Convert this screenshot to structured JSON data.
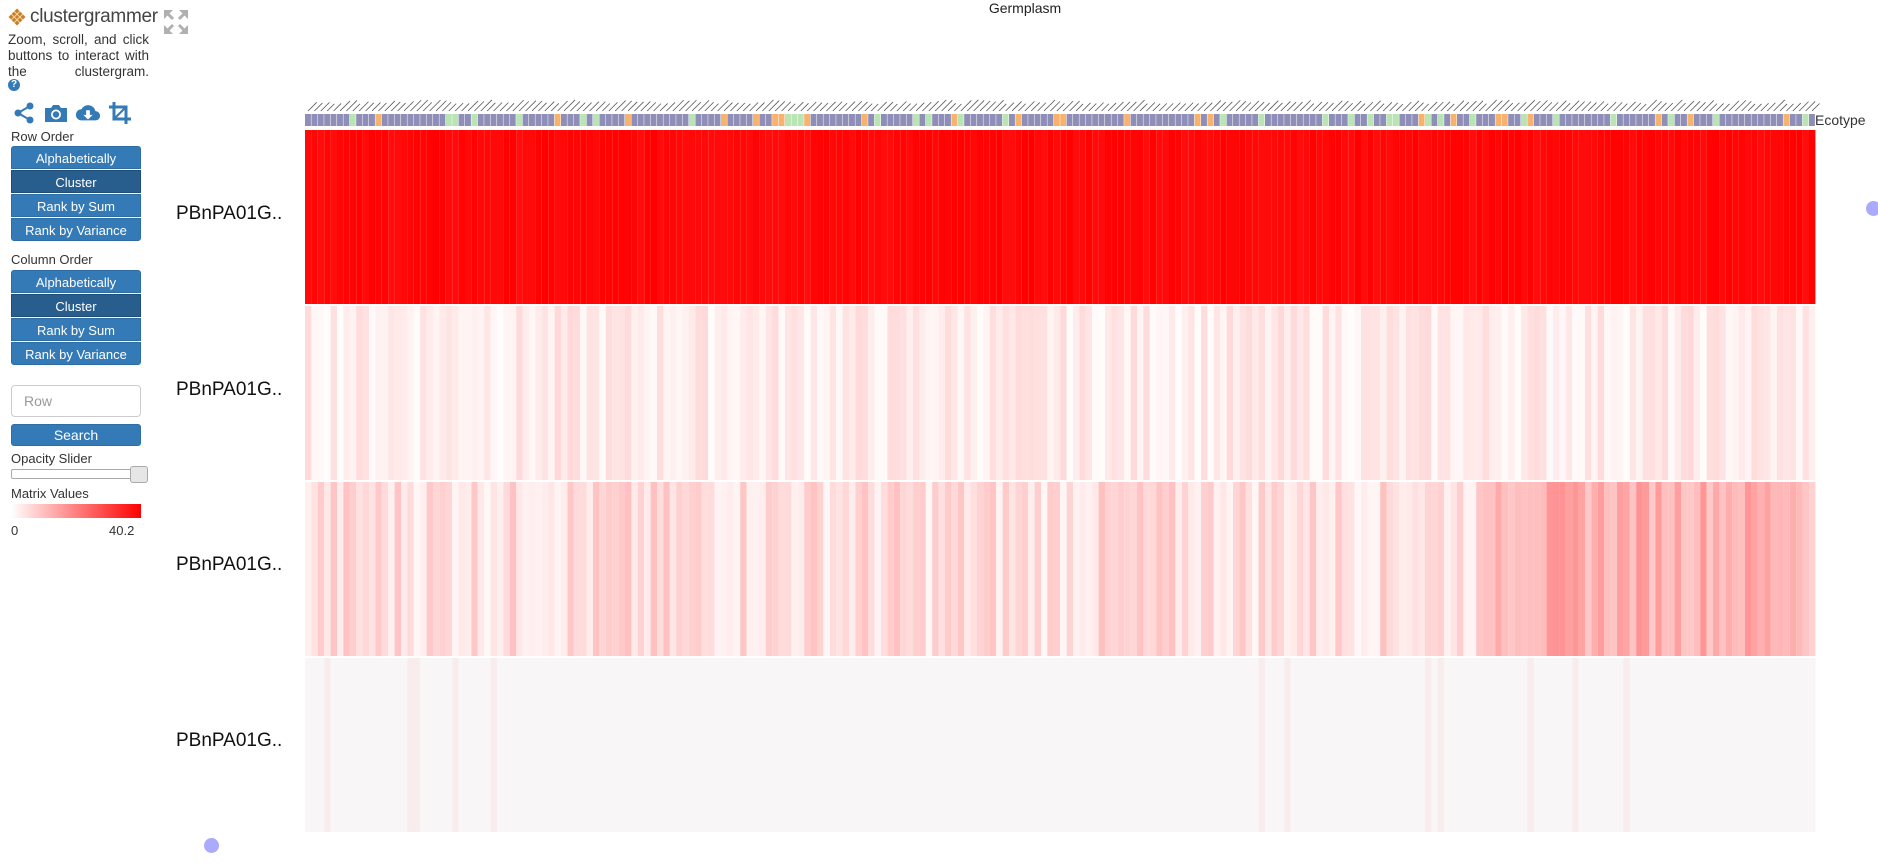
{
  "app": {
    "logo_text": "clustergrammer",
    "description": "Zoom, scroll, and click buttons to interact with the clustergram.",
    "help_icon": "?"
  },
  "toolbar": {
    "icons": [
      "share-icon",
      "camera-icon",
      "download-icon",
      "crop-icon"
    ]
  },
  "row_order": {
    "label": "Row Order",
    "buttons": [
      "Alphabetically",
      "Cluster",
      "Rank by Sum",
      "Rank by Variance"
    ],
    "active": "Cluster"
  },
  "column_order": {
    "label": "Column Order",
    "buttons": [
      "Alphabetically",
      "Cluster",
      "Rank by Sum",
      "Rank by Variance"
    ],
    "active": "Cluster"
  },
  "search": {
    "placeholder": "Row",
    "button_label": "Search"
  },
  "opacity": {
    "label": "Opacity Slider",
    "value": 1.0
  },
  "legend": {
    "label": "Matrix Values",
    "min": "0",
    "max": "40.2",
    "high_color": "#ff0000",
    "low_color": "#ffffff"
  },
  "heatmap": {
    "column_title": "Germplasm",
    "category_label": "Ecotype",
    "category_colors": [
      "#8e8eb8",
      "#f9b16e",
      "#b9e4b4"
    ],
    "row_labels": [
      "PBnPA01G..",
      "PBnPA01G..",
      "PBnPA01G..",
      "PBnPA01G.."
    ],
    "num_columns": 236,
    "value_max": 40.2
  }
}
